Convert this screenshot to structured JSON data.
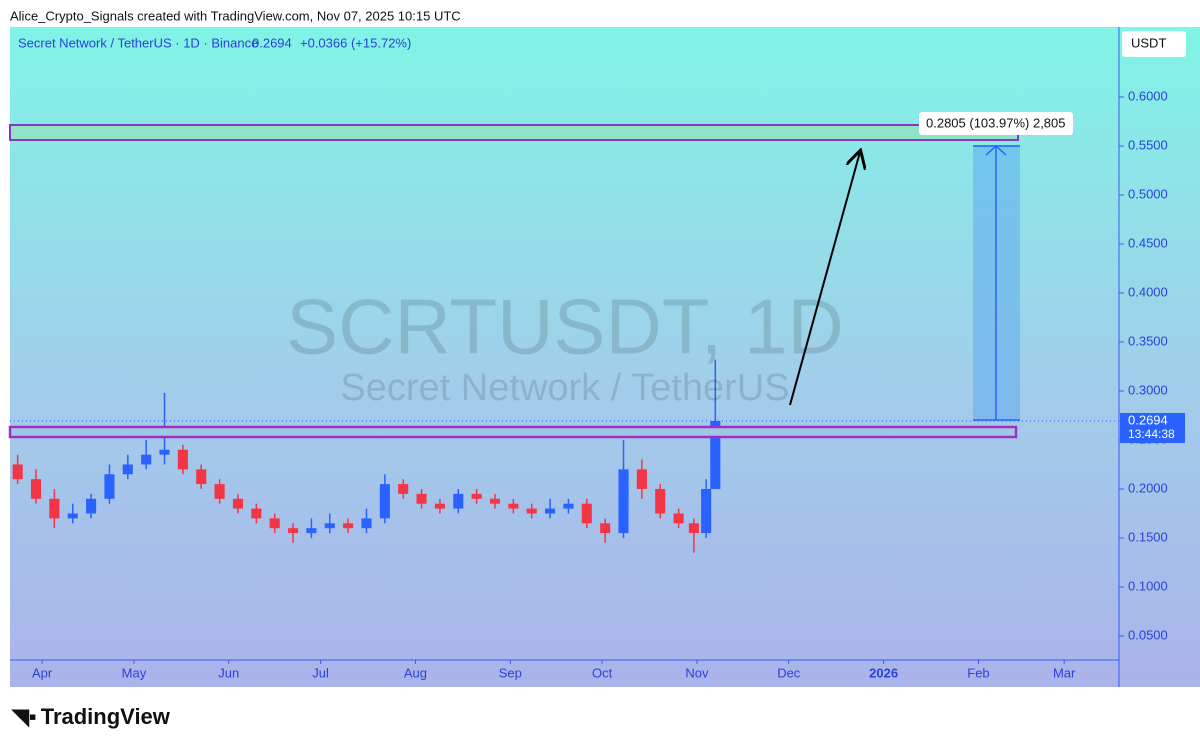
{
  "header": "Alice_Crypto_Signals created with TradingView.com, Nov 07, 2025 10:15 UTC",
  "chart_data": {
    "type": "candlestick",
    "symbol_info": "Secret Network / TetherUS · 1D · Binance",
    "change": "+0.0366 (+15.72%)",
    "watermark_symbol": "SCRTUSDT, 1D",
    "watermark_name": "Secret Network / TetherUS",
    "currency": "USDT",
    "countdown": "13:44:38",
    "measure_label": "0.2805 (103.97%) 2,805",
    "x": [
      -8,
      -2,
      4,
      10,
      16,
      22,
      28,
      34,
      40,
      46,
      52,
      58,
      64,
      70,
      76,
      82,
      88,
      94,
      100,
      106,
      112,
      118,
      124,
      130,
      136,
      142,
      148,
      154,
      160,
      166,
      172,
      178,
      184,
      190,
      196,
      202,
      208,
      213,
      217,
      220
    ],
    "open": [
      0.225,
      0.21,
      0.19,
      0.17,
      0.175,
      0.19,
      0.215,
      0.225,
      0.235,
      0.24,
      0.22,
      0.205,
      0.19,
      0.18,
      0.17,
      0.16,
      0.155,
      0.16,
      0.165,
      0.16,
      0.17,
      0.205,
      0.195,
      0.185,
      0.18,
      0.195,
      0.19,
      0.185,
      0.18,
      0.175,
      0.18,
      0.185,
      0.165,
      0.155,
      0.22,
      0.2,
      0.175,
      0.165,
      0.155,
      0.2
    ],
    "high": [
      0.235,
      0.22,
      0.2,
      0.185,
      0.195,
      0.225,
      0.235,
      0.25,
      0.298,
      0.245,
      0.225,
      0.21,
      0.195,
      0.185,
      0.175,
      0.165,
      0.17,
      0.175,
      0.17,
      0.18,
      0.215,
      0.21,
      0.2,
      0.19,
      0.2,
      0.2,
      0.195,
      0.19,
      0.185,
      0.19,
      0.19,
      0.19,
      0.17,
      0.25,
      0.23,
      0.205,
      0.18,
      0.17,
      0.21,
      0.332
    ],
    "low": [
      0.205,
      0.185,
      0.16,
      0.165,
      0.17,
      0.185,
      0.21,
      0.22,
      0.225,
      0.215,
      0.2,
      0.185,
      0.175,
      0.165,
      0.155,
      0.145,
      0.15,
      0.155,
      0.155,
      0.155,
      0.165,
      0.19,
      0.18,
      0.175,
      0.175,
      0.185,
      0.18,
      0.175,
      0.17,
      0.17,
      0.175,
      0.16,
      0.145,
      0.15,
      0.19,
      0.17,
      0.16,
      0.135,
      0.15,
      0.2
    ],
    "close": [
      0.21,
      0.19,
      0.17,
      0.175,
      0.19,
      0.215,
      0.225,
      0.235,
      0.24,
      0.22,
      0.205,
      0.19,
      0.18,
      0.17,
      0.16,
      0.155,
      0.16,
      0.165,
      0.16,
      0.17,
      0.205,
      0.195,
      0.185,
      0.18,
      0.195,
      0.19,
      0.185,
      0.18,
      0.175,
      0.18,
      0.185,
      0.165,
      0.155,
      0.22,
      0.2,
      0.175,
      0.165,
      0.155,
      0.2,
      0.2694
    ],
    "up_color": "#2962ff",
    "down_color": "#f23645",
    "xlim": [
      -10.5,
      351.6
    ],
    "xticks": [
      {
        "value": 0,
        "label": "Apr"
      },
      {
        "value": 30,
        "label": "May"
      },
      {
        "value": 61,
        "label": "Jun"
      },
      {
        "value": 91,
        "label": "Jul"
      },
      {
        "value": 122,
        "label": "Aug"
      },
      {
        "value": 153,
        "label": "Sep"
      },
      {
        "value": 183,
        "label": "Oct"
      },
      {
        "value": 214,
        "label": "Nov"
      },
      {
        "value": 244,
        "label": "Dec"
      },
      {
        "value": 275,
        "label": "2026"
      },
      {
        "value": 306,
        "label": "Feb"
      },
      {
        "value": 334,
        "label": "Mar"
      }
    ],
    "ylim": [
      0.0255,
      0.6714
    ],
    "yticks": [
      {
        "value": 0.05,
        "label": "0.0500"
      },
      {
        "value": 0.1,
        "label": "0.1000"
      },
      {
        "value": 0.15,
        "label": "0.1500"
      },
      {
        "value": 0.2,
        "label": "0.2000"
      },
      {
        "value": 0.25,
        "label": "0.2500"
      },
      {
        "value": 0.3,
        "label": "0.3000"
      },
      {
        "value": 0.35,
        "label": "0.3500"
      },
      {
        "value": 0.4,
        "label": "0.4000"
      },
      {
        "value": 0.45,
        "label": "0.4500"
      },
      {
        "value": 0.5,
        "label": "0.5000"
      },
      {
        "value": 0.55,
        "label": "0.5500"
      },
      {
        "value": 0.6,
        "label": "0.6000"
      }
    ]
  },
  "footer_logo": "TradingView"
}
